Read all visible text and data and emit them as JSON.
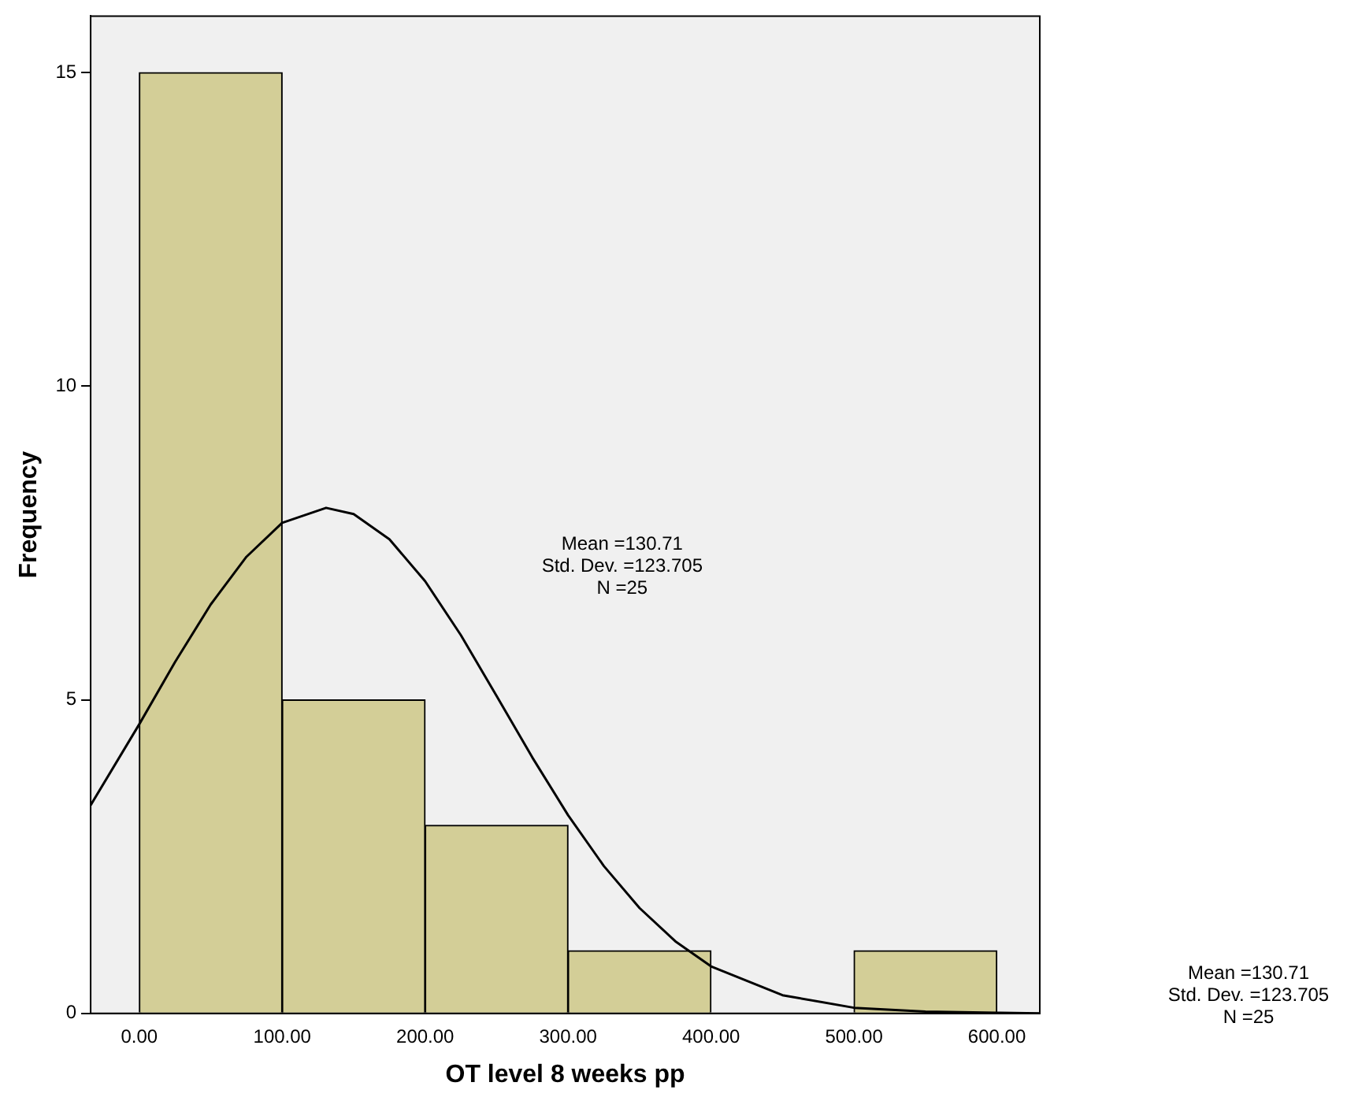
{
  "chart_data": {
    "type": "histogram",
    "xlabel": "OT level 8 weeks pp",
    "ylabel": "Frequency",
    "bins": [
      0,
      100,
      200,
      300,
      400,
      500,
      600
    ],
    "values": [
      15,
      5,
      3,
      1,
      0,
      1
    ],
    "color": "#d3ce97",
    "series": [
      {
        "type": "line",
        "color": "#000000",
        "x": [
          -34,
          0,
          25,
          50,
          75,
          100,
          130.71,
          150,
          175,
          200,
          225,
          250,
          275,
          300,
          325,
          350,
          375,
          400,
          450,
          500,
          550,
          600,
          630
        ],
        "values": [
          3.32,
          4.61,
          5.6,
          6.52,
          7.28,
          7.82,
          8.06,
          7.96,
          7.56,
          6.89,
          6.03,
          5.06,
          4.08,
          3.16,
          2.35,
          1.68,
          1.15,
          0.75,
          0.29,
          0.09,
          0.03,
          0.01,
          0
        ]
      }
    ],
    "xlim": [
      -34,
      630
    ],
    "xticks": [
      {
        "value": 0,
        "label": "0.00"
      },
      {
        "value": 100,
        "label": "100.00"
      },
      {
        "value": 200,
        "label": "200.00"
      },
      {
        "value": 300,
        "label": "300.00"
      },
      {
        "value": 400,
        "label": "400.00"
      },
      {
        "value": 500,
        "label": "500.00"
      },
      {
        "value": 600,
        "label": "600.00"
      }
    ],
    "ylim": [
      0,
      15.9
    ],
    "yticks": [
      0,
      5,
      10,
      15
    ],
    "legend": false,
    "marker": "none",
    "annotations": [
      "Mean =130.71",
      "Std. Dev. =123.705",
      "N =25",
      "Mean =130.71",
      "Std. Dev. =123.705",
      "N =25"
    ]
  }
}
